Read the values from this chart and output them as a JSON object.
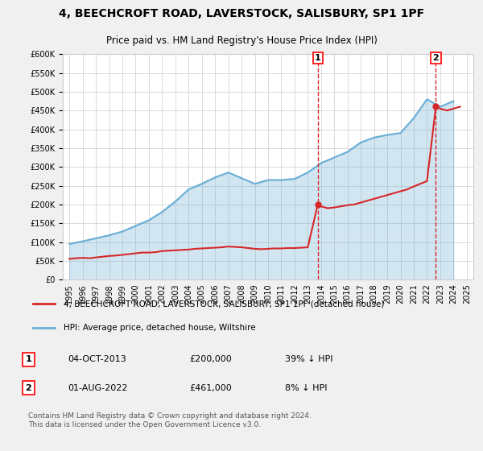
{
  "title": "4, BEECHCROFT ROAD, LAVERSTOCK, SALISBURY, SP1 1PF",
  "subtitle": "Price paid vs. HM Land Registry's House Price Index (HPI)",
  "legend_label_red": "4, BEECHCROFT ROAD, LAVERSTOCK, SALISBURY, SP1 1PF (detached house)",
  "legend_label_blue": "HPI: Average price, detached house, Wiltshire",
  "annotation1_label": "1",
  "annotation1_date": "04-OCT-2013",
  "annotation1_price": "£200,000",
  "annotation1_hpi": "39% ↓ HPI",
  "annotation2_label": "2",
  "annotation2_date": "01-AUG-2022",
  "annotation2_price": "£461,000",
  "annotation2_hpi": "8% ↓ HPI",
  "footer": "Contains HM Land Registry data © Crown copyright and database right 2024.\nThis data is licensed under the Open Government Licence v3.0.",
  "ylim": [
    0,
    600000
  ],
  "yticks": [
    0,
    50000,
    100000,
    150000,
    200000,
    250000,
    300000,
    350000,
    400000,
    450000,
    500000,
    550000,
    600000
  ],
  "hpi_color": "#6baed6",
  "price_color": "#d62728",
  "vline_color": "#d62728",
  "background_color": "#f0f0f0",
  "plot_bg_color": "#ffffff",
  "hpi_years": [
    1995,
    1996,
    1997,
    1998,
    1999,
    2000,
    2001,
    2002,
    2003,
    2004,
    2005,
    2006,
    2007,
    2008,
    2009,
    2010,
    2011,
    2012,
    2013,
    2014,
    2015,
    2016,
    2017,
    2018,
    2019,
    2020,
    2021,
    2022,
    2023,
    2024
  ],
  "hpi_values": [
    95000,
    102000,
    110000,
    118000,
    128000,
    143000,
    158000,
    180000,
    208000,
    240000,
    255000,
    272000,
    285000,
    270000,
    255000,
    265000,
    265000,
    268000,
    285000,
    310000,
    325000,
    340000,
    365000,
    378000,
    385000,
    390000,
    430000,
    480000,
    460000,
    475000
  ],
  "price_years": [
    1995.0,
    1995.5,
    1996.0,
    1996.5,
    1997.0,
    1997.5,
    1998.0,
    1998.5,
    1999.0,
    1999.5,
    2000.0,
    2000.5,
    2001.0,
    2001.5,
    2002.0,
    2002.5,
    2003.0,
    2003.5,
    2004.0,
    2004.5,
    2005.0,
    2005.5,
    2006.0,
    2006.5,
    2007.0,
    2007.5,
    2008.0,
    2008.5,
    2009.0,
    2009.5,
    2010.0,
    2010.5,
    2011.0,
    2011.5,
    2012.0,
    2012.5,
    2013.0,
    2013.75,
    2014.0,
    2014.5,
    2015.0,
    2015.5,
    2016.0,
    2016.5,
    2017.0,
    2017.5,
    2018.0,
    2018.5,
    2019.0,
    2019.5,
    2020.0,
    2020.5,
    2021.0,
    2021.5,
    2022.0,
    2022.67,
    2023.0,
    2023.5,
    2024.0,
    2024.5
  ],
  "price_values": [
    55000,
    57000,
    58000,
    57000,
    59000,
    61000,
    63000,
    64000,
    66000,
    68000,
    70000,
    72000,
    72000,
    73000,
    76000,
    77000,
    78000,
    79000,
    80000,
    82000,
    83000,
    84000,
    85000,
    86000,
    88000,
    87000,
    86000,
    84000,
    82000,
    81000,
    82000,
    83000,
    83000,
    84000,
    84000,
    85000,
    86000,
    200000,
    195000,
    190000,
    192000,
    195000,
    198000,
    200000,
    205000,
    210000,
    215000,
    220000,
    225000,
    230000,
    235000,
    240000,
    248000,
    255000,
    262000,
    461000,
    455000,
    450000,
    455000,
    460000
  ],
  "sale1_x": 2013.75,
  "sale1_y": 200000,
  "sale2_x": 2022.67,
  "sale2_y": 461000,
  "xticks": [
    1995,
    1996,
    1997,
    1998,
    1999,
    2000,
    2001,
    2002,
    2003,
    2004,
    2005,
    2006,
    2007,
    2008,
    2009,
    2010,
    2011,
    2012,
    2013,
    2014,
    2015,
    2016,
    2017,
    2018,
    2019,
    2020,
    2021,
    2022,
    2023,
    2024,
    2025
  ]
}
